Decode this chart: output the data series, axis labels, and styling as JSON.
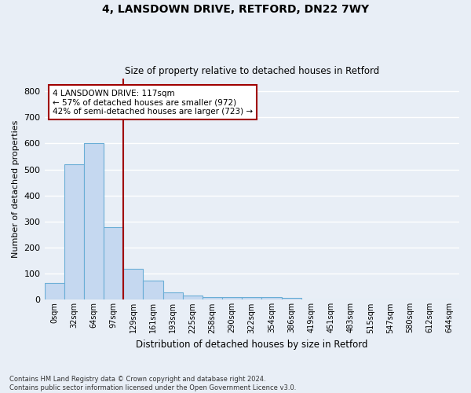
{
  "title1": "4, LANSDOWN DRIVE, RETFORD, DN22 7WY",
  "title2": "Size of property relative to detached houses in Retford",
  "xlabel": "Distribution of detached houses by size in Retford",
  "ylabel": "Number of detached properties",
  "bar_labels": [
    "0sqm",
    "32sqm",
    "64sqm",
    "97sqm",
    "129sqm",
    "161sqm",
    "193sqm",
    "225sqm",
    "258sqm",
    "290sqm",
    "322sqm",
    "354sqm",
    "386sqm",
    "419sqm",
    "451sqm",
    "483sqm",
    "515sqm",
    "547sqm",
    "580sqm",
    "612sqm",
    "644sqm"
  ],
  "bar_heights": [
    65,
    520,
    600,
    280,
    120,
    75,
    28,
    15,
    10,
    10,
    10,
    10,
    8,
    0,
    0,
    0,
    0,
    0,
    0,
    0,
    0
  ],
  "bar_color": "#c5d8f0",
  "bar_edge_color": "#6aaed6",
  "vline_color": "#a00000",
  "annotation_text": "4 LANSDOWN DRIVE: 117sqm\n← 57% of detached houses are smaller (972)\n42% of semi-detached houses are larger (723) →",
  "annotation_box_color": "#ffffff",
  "annotation_box_edge": "#a00000",
  "ylim": [
    0,
    850
  ],
  "yticks": [
    0,
    100,
    200,
    300,
    400,
    500,
    600,
    700,
    800
  ],
  "footnote": "Contains HM Land Registry data © Crown copyright and database right 2024.\nContains public sector information licensed under the Open Government Licence v3.0.",
  "bg_color": "#e8eef6",
  "grid_color": "#ffffff"
}
